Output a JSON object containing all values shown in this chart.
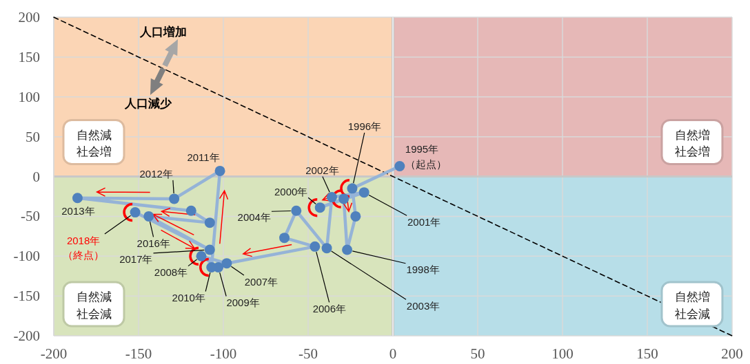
{
  "chart_data": {
    "type": "line",
    "xlim": [
      -200,
      200
    ],
    "ylim": [
      -200,
      200
    ],
    "xticks": [
      {
        "value": -200,
        "label": "-200"
      },
      {
        "value": -150,
        "label": "-150"
      },
      {
        "value": -100,
        "label": "-100"
      },
      {
        "value": -50,
        "label": "-50"
      },
      0,
      50,
      100,
      150,
      200
    ],
    "yticks": [
      {
        "value": -200,
        "label": "-200"
      },
      {
        "value": -150,
        "label": "-150"
      },
      {
        "value": -100,
        "label": "-100"
      },
      {
        "value": -50,
        "label": "-50"
      },
      0,
      50,
      100,
      150,
      200
    ],
    "grid": true,
    "marker": "circle",
    "series": [
      {
        "color": "#000000",
        "line_style": "dashed",
        "marker": "none",
        "x": [
          -200,
          200
        ],
        "values": [
          200,
          -200
        ]
      },
      {
        "color": "#95b3d7",
        "line_style": "solid",
        "x": [
          4,
          -24,
          -22,
          -27,
          -29,
          -43,
          -17,
          -36,
          -39,
          -57,
          -64,
          -46,
          -98,
          -113,
          -103,
          -107,
          -102,
          -129,
          -186,
          -119,
          -108,
          -144,
          -108,
          -152
        ],
        "values": [
          13,
          -15,
          -50,
          -92,
          -28,
          -39,
          -20,
          -26,
          -90,
          -43,
          -77,
          -88,
          -109,
          -100,
          -114,
          -114,
          7,
          -28,
          -27,
          -43,
          -58,
          -50,
          -92,
          -45
        ]
      }
    ],
    "bands": [
      {
        "axis": "x",
        "from": -200,
        "to": 0,
        "label": "自然減社会増",
        "color": "#fbd5b5"
      },
      {
        "axis": "x",
        "from": 0,
        "to": 200,
        "label": "自然増社会増",
        "color": "#e6b8b7"
      },
      {
        "axis": "x",
        "from": -200,
        "to": 0,
        "label": "自然減社会減",
        "color": "#d8e4bc"
      },
      {
        "axis": "x",
        "from": 0,
        "to": 200,
        "label": "自然増社会減",
        "color": "#b7dee8"
      }
    ],
    "annotations": [
      "人口増加",
      "人口減少",
      {
        "text": "1995年（起点）",
        "x": 4,
        "y": 13
      },
      {
        "text": "1996年",
        "x": -24,
        "y": -15
      },
      {
        "text": "1998年",
        "x": -27,
        "y": -92
      },
      {
        "text": "2000年",
        "x": -43,
        "y": -39
      },
      {
        "text": "2001年",
        "x": -17,
        "y": -20
      },
      {
        "text": "2002年",
        "x": -36,
        "y": -26
      },
      {
        "text": "2003年",
        "x": -39,
        "y": -90
      },
      {
        "text": "2004年",
        "x": -57,
        "y": -43
      },
      {
        "text": "2006年",
        "x": -46,
        "y": -88
      },
      {
        "text": "2007年",
        "x": -98,
        "y": -109
      },
      {
        "text": "2008年",
        "x": -113,
        "y": -100
      },
      {
        "text": "2009年",
        "x": -103,
        "y": -114
      },
      {
        "text": "2010年",
        "x": -107,
        "y": -114
      },
      {
        "text": "2011年",
        "x": -102,
        "y": 7
      },
      {
        "text": "2012年",
        "x": -129,
        "y": -28
      },
      {
        "text": "2013年",
        "x": -186,
        "y": -27
      },
      {
        "text": "2016年",
        "x": -144,
        "y": -50
      },
      {
        "text": "2017年",
        "x": -108,
        "y": -92
      },
      {
        "text": "2018年（終点）",
        "x": -152,
        "y": -45
      }
    ]
  }
}
